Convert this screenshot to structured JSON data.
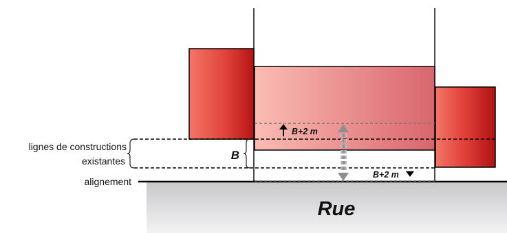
{
  "labels": {
    "building_lines_1": "lignes de constructions",
    "building_lines_2": "existantes",
    "alignment": "alignement",
    "b": "B",
    "b_plus_2m_upper": "B+2 m",
    "b_plus_2m_lower": "B+2 m",
    "street": "Rue"
  },
  "colors": {
    "building_dark": "#c21a1a",
    "building_light": "#f06a5a",
    "center_building_left": "#fbb9b0",
    "center_building_right": "#dc6e74",
    "street_fill": "#d7d7d9",
    "arrow_gray": "#9a9a9a",
    "line": "#000000"
  }
}
